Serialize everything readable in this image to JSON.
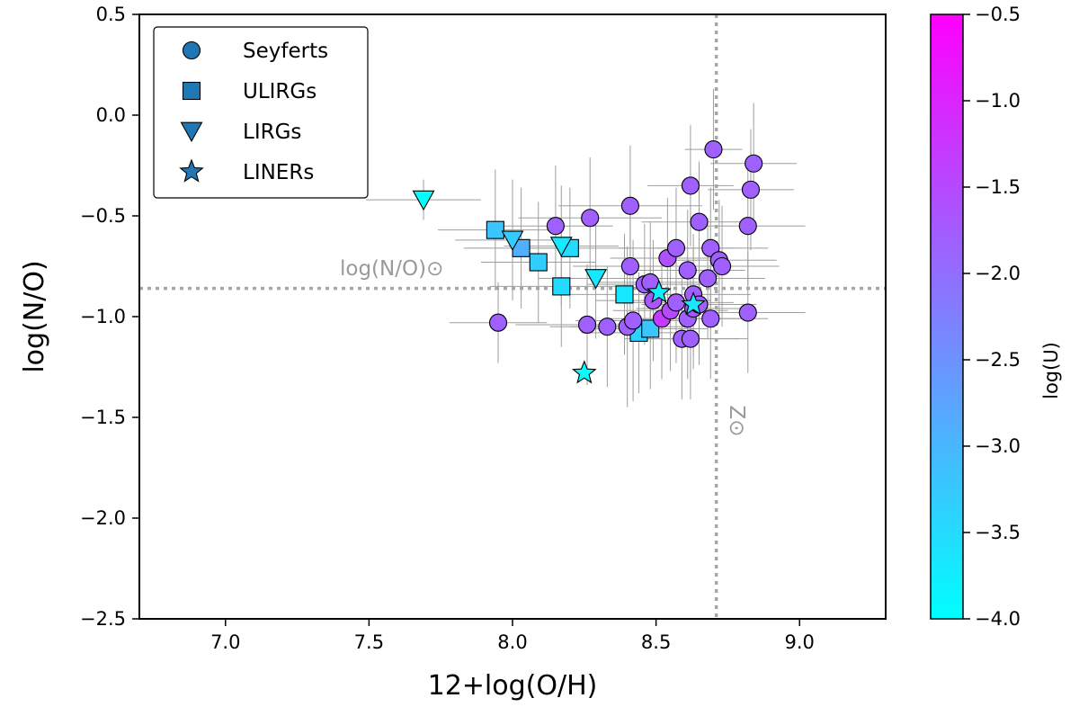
{
  "chart_data": {
    "type": "scatter",
    "xlabel": "12+log(O/H)",
    "ylabel": "log(N/O)",
    "xlim": [
      6.7,
      9.3
    ],
    "ylim": [
      -2.5,
      0.5
    ],
    "xticks": [
      7.0,
      7.5,
      8.0,
      8.5,
      9.0
    ],
    "yticks": [
      0.5,
      0.0,
      -0.5,
      -1.0,
      -1.5,
      -2.0,
      -2.5
    ],
    "xtick_labels": [
      "7.0",
      "7.5",
      "8.0",
      "8.5",
      "9.0"
    ],
    "ytick_labels": [
      "0.5",
      "0.0",
      "−0.5",
      "−1.0",
      "−1.5",
      "−2.0",
      "−2.5"
    ],
    "reference_lines": {
      "solar_NO": {
        "y": -0.86,
        "label": "log(N/O)⊙"
      },
      "solar_Z": {
        "x": 8.71,
        "label": "Z⊙"
      }
    },
    "colorbar": {
      "label": "log(U)",
      "range": [
        -4.0,
        -0.5
      ],
      "ticks": [
        -0.5,
        -1.0,
        -1.5,
        -2.0,
        -2.5,
        -3.0,
        -3.5,
        -4.0
      ],
      "tick_labels": [
        "−0.5",
        "−1.0",
        "−1.5",
        "−2.0",
        "−2.5",
        "−3.0",
        "−3.5",
        "−4.0"
      ],
      "colormap": [
        "#00ffff",
        "#ff00ff"
      ]
    },
    "legend": {
      "position": "top-left",
      "entries": [
        {
          "label": "Seyferts",
          "marker": "circle"
        },
        {
          "label": "ULIRGs",
          "marker": "square"
        },
        {
          "label": "LIRGs",
          "marker": "triangle-down"
        },
        {
          "label": "LINERs",
          "marker": "star"
        }
      ],
      "marker_color": "#1f77b4"
    },
    "series": [
      {
        "name": "Seyferts",
        "marker": "circle",
        "points": [
          {
            "x": 7.95,
            "y": -1.03,
            "logU": -1.8,
            "xerr": 0.17,
            "yerr": 0.2
          },
          {
            "x": 8.15,
            "y": -0.55,
            "logU": -1.8,
            "xerr": 0.2,
            "yerr": 0.3
          },
          {
            "x": 8.27,
            "y": -0.51,
            "logU": -1.8,
            "xerr": 0.25,
            "yerr": 0.3
          },
          {
            "x": 8.26,
            "y": -1.04,
            "logU": -1.8,
            "xerr": 0.25,
            "yerr": 0.3
          },
          {
            "x": 8.33,
            "y": -1.05,
            "logU": -1.8,
            "xerr": 0.2,
            "yerr": 0.3
          },
          {
            "x": 8.41,
            "y": -0.45,
            "logU": -1.8,
            "xerr": 0.25,
            "yerr": 0.3
          },
          {
            "x": 8.41,
            "y": -0.75,
            "logU": -1.8,
            "xerr": 0.2,
            "yerr": 0.3
          },
          {
            "x": 8.4,
            "y": -1.05,
            "logU": -1.8,
            "xerr": 0.2,
            "yerr": 0.4
          },
          {
            "x": 8.42,
            "y": -1.02,
            "logU": -1.8,
            "xerr": 0.2,
            "yerr": 0.4
          },
          {
            "x": 8.46,
            "y": -0.84,
            "logU": -1.8,
            "xerr": 0.2,
            "yerr": 0.3
          },
          {
            "x": 8.48,
            "y": -0.83,
            "logU": -1.8,
            "xerr": 0.2,
            "yerr": 0.3
          },
          {
            "x": 8.49,
            "y": -0.92,
            "logU": -1.7,
            "xerr": 0.2,
            "yerr": 0.3
          },
          {
            "x": 8.52,
            "y": -1.01,
            "logU": -1.3,
            "xerr": 0.2,
            "yerr": 0.3
          },
          {
            "x": 8.54,
            "y": -0.71,
            "logU": -1.6,
            "xerr": 0.2,
            "yerr": 0.3
          },
          {
            "x": 8.55,
            "y": -0.97,
            "logU": -1.5,
            "xerr": 0.2,
            "yerr": 0.3
          },
          {
            "x": 8.57,
            "y": -0.66,
            "logU": -1.8,
            "xerr": 0.2,
            "yerr": 0.3
          },
          {
            "x": 8.57,
            "y": -0.93,
            "logU": -1.8,
            "xerr": 0.2,
            "yerr": 0.3
          },
          {
            "x": 8.59,
            "y": -1.11,
            "logU": -1.8,
            "xerr": 0.2,
            "yerr": 0.3
          },
          {
            "x": 8.61,
            "y": -0.77,
            "logU": -1.8,
            "xerr": 0.2,
            "yerr": 0.3
          },
          {
            "x": 8.61,
            "y": -1.01,
            "logU": -1.8,
            "xerr": 0.2,
            "yerr": 0.3
          },
          {
            "x": 8.62,
            "y": -0.35,
            "logU": -1.8,
            "xerr": 0.15,
            "yerr": 0.3
          },
          {
            "x": 8.62,
            "y": -1.11,
            "logU": -1.8,
            "xerr": 0.2,
            "yerr": 0.3
          },
          {
            "x": 8.63,
            "y": -0.89,
            "logU": -1.8,
            "xerr": 0.2,
            "yerr": 0.3
          },
          {
            "x": 8.63,
            "y": -0.96,
            "logU": -1.7,
            "xerr": 0.2,
            "yerr": 0.3
          },
          {
            "x": 8.65,
            "y": -0.53,
            "logU": -1.8,
            "xerr": 0.2,
            "yerr": 0.3
          },
          {
            "x": 8.65,
            "y": -0.94,
            "logU": -1.8,
            "xerr": 0.2,
            "yerr": 0.3
          },
          {
            "x": 8.68,
            "y": -0.81,
            "logU": -1.8,
            "xerr": 0.2,
            "yerr": 0.3
          },
          {
            "x": 8.69,
            "y": -0.66,
            "logU": -1.8,
            "xerr": 0.2,
            "yerr": 0.3
          },
          {
            "x": 8.69,
            "y": -1.01,
            "logU": -1.8,
            "xerr": 0.2,
            "yerr": 0.3
          },
          {
            "x": 8.7,
            "y": -0.17,
            "logU": -1.8,
            "xerr": 0.1,
            "yerr": 0.3
          },
          {
            "x": 8.72,
            "y": -0.72,
            "logU": -1.8,
            "xerr": 0.2,
            "yerr": 0.3
          },
          {
            "x": 8.73,
            "y": -0.75,
            "logU": -1.8,
            "xerr": 0.2,
            "yerr": 0.3
          },
          {
            "x": 8.82,
            "y": -0.55,
            "logU": -1.8,
            "xerr": 0.2,
            "yerr": 0.3
          },
          {
            "x": 8.82,
            "y": -0.98,
            "logU": -1.8,
            "xerr": 0.2,
            "yerr": 0.3
          },
          {
            "x": 8.83,
            "y": -0.37,
            "logU": -1.8,
            "xerr": 0.15,
            "yerr": 0.3
          },
          {
            "x": 8.84,
            "y": -0.24,
            "logU": -1.8,
            "xerr": 0.15,
            "yerr": 0.3
          }
        ]
      },
      {
        "name": "ULIRGs",
        "marker": "square",
        "points": [
          {
            "x": 7.94,
            "y": -0.57,
            "logU": -3.2,
            "xerr": 0.2,
            "yerr": 0.3
          },
          {
            "x": 8.03,
            "y": -0.66,
            "logU": -2.9,
            "xerr": 0.2,
            "yerr": 0.3
          },
          {
            "x": 8.09,
            "y": -0.73,
            "logU": -3.3,
            "xerr": 0.2,
            "yerr": 0.3
          },
          {
            "x": 8.17,
            "y": -0.85,
            "logU": -3.5,
            "xerr": 0.25,
            "yerr": 0.3
          },
          {
            "x": 8.2,
            "y": -0.66,
            "logU": -3.5,
            "xerr": 0.2,
            "yerr": 0.3
          },
          {
            "x": 8.39,
            "y": -0.89,
            "logU": -3.7,
            "xerr": 0.2,
            "yerr": 0.3
          },
          {
            "x": 8.44,
            "y": -1.08,
            "logU": -3.4,
            "xerr": 0.2,
            "yerr": 0.3
          },
          {
            "x": 8.48,
            "y": -1.06,
            "logU": -3.2,
            "xerr": 0.2,
            "yerr": 0.3
          }
        ]
      },
      {
        "name": "LIRGs",
        "marker": "triangle-down",
        "points": [
          {
            "x": 7.69,
            "y": -0.42,
            "logU": -4.0,
            "xerr": 0.2,
            "yerr": 0.1
          },
          {
            "x": 8.0,
            "y": -0.62,
            "logU": -3.3,
            "xerr": 0.2,
            "yerr": 0.3
          },
          {
            "x": 8.17,
            "y": -0.65,
            "logU": -3.7,
            "xerr": 0.2,
            "yerr": 0.3
          },
          {
            "x": 8.29,
            "y": -0.81,
            "logU": -3.7,
            "xerr": 0.2,
            "yerr": 0.3
          }
        ]
      },
      {
        "name": "LINERs",
        "marker": "star",
        "points": [
          {
            "x": 8.25,
            "y": -1.28,
            "logU": -4.0,
            "xerr": 0.0,
            "yerr": 0.0
          },
          {
            "x": 8.51,
            "y": -0.88,
            "logU": -3.8,
            "xerr": 0.0,
            "yerr": 0.0
          },
          {
            "x": 8.63,
            "y": -0.94,
            "logU": -3.7,
            "xerr": 0.0,
            "yerr": 0.0
          }
        ]
      }
    ]
  }
}
